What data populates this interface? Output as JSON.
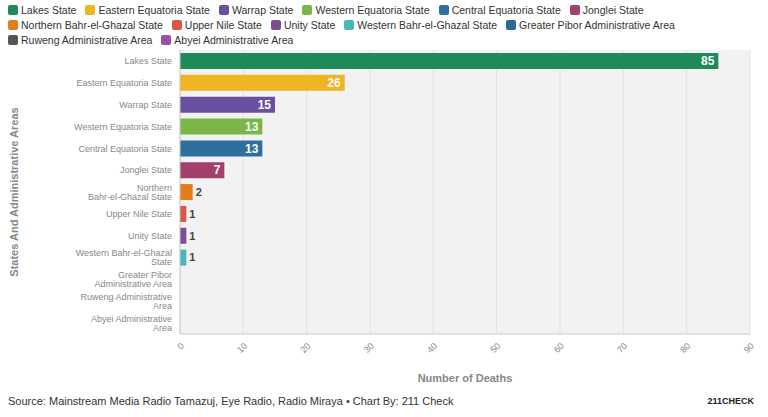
{
  "chart_data": {
    "type": "bar",
    "orientation": "horizontal",
    "x_label": "Number of Deaths",
    "y_label": "States And Administrative Areas",
    "source": "Source: Mainstream Media Radio Tamazuj, Eye Radio, Radio Miraya • Chart By: 211 Check",
    "logo": "211CHECK",
    "categories": [
      "Lakes State",
      "Eastern Equatoria State",
      "Warrap State",
      "Western Equatoria State",
      "Central Equatoria State",
      "Jonglei State",
      "Northern Bahr-el-Ghazal State",
      "Upper Nile State",
      "Unity State",
      "Western Bahr-el-Ghazal State",
      "Greater Pibor Administrative Area",
      "Ruweng Administrative Area",
      "Abyei Administrative Area"
    ],
    "values": [
      85,
      26,
      15,
      13,
      13,
      7,
      2,
      1,
      1,
      1,
      0,
      0,
      0
    ],
    "colors": [
      "#1e8a5a",
      "#f0b323",
      "#6b4fa0",
      "#7ab648",
      "#2e6f9e",
      "#a3406e",
      "#e37c1a",
      "#d9574a",
      "#7b4f8f",
      "#4bb8b8",
      "#2d6a8f",
      "#555555",
      "#9c4fa3"
    ],
    "xlim": [
      0,
      90
    ],
    "xticks": [
      0,
      10,
      20,
      30,
      40,
      50,
      60,
      70,
      80,
      90
    ],
    "grid": true,
    "legend": "top",
    "data_labels": true
  }
}
